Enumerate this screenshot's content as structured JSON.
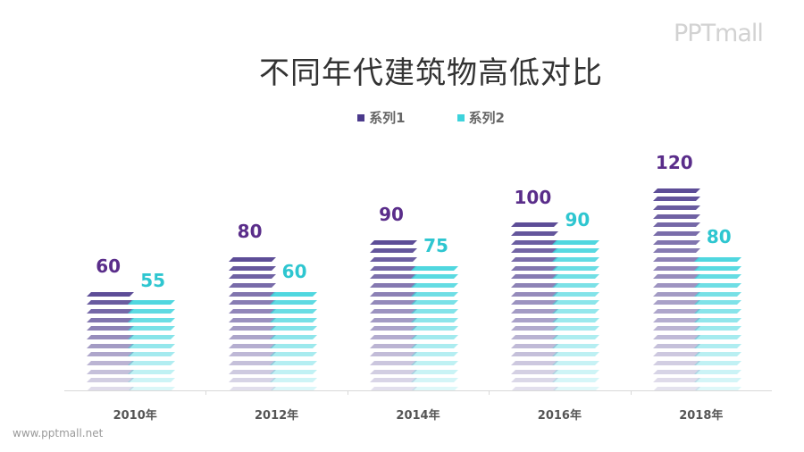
{
  "logo": "PPTmall",
  "footer_url": "www.pptmall.net",
  "colors": {
    "series1": "#4b3a8c",
    "series2": "#3dd3dc",
    "label1": "#5a2d8a",
    "label2": "#2ec6d0"
  },
  "chart_data": {
    "type": "bar",
    "title": "不同年代建筑物高低对比",
    "categories": [
      "2010年",
      "2012年",
      "2014年",
      "2016年",
      "2018年"
    ],
    "series": [
      {
        "name": "系列1",
        "values": [
          60,
          80,
          90,
          100,
          120
        ]
      },
      {
        "name": "系列2",
        "values": [
          55,
          60,
          75,
          90,
          80
        ]
      }
    ],
    "xlabel": "",
    "ylabel": "",
    "ylim": [
      0,
      120
    ],
    "grid": false,
    "legend_position": "top",
    "data_labels": true
  }
}
